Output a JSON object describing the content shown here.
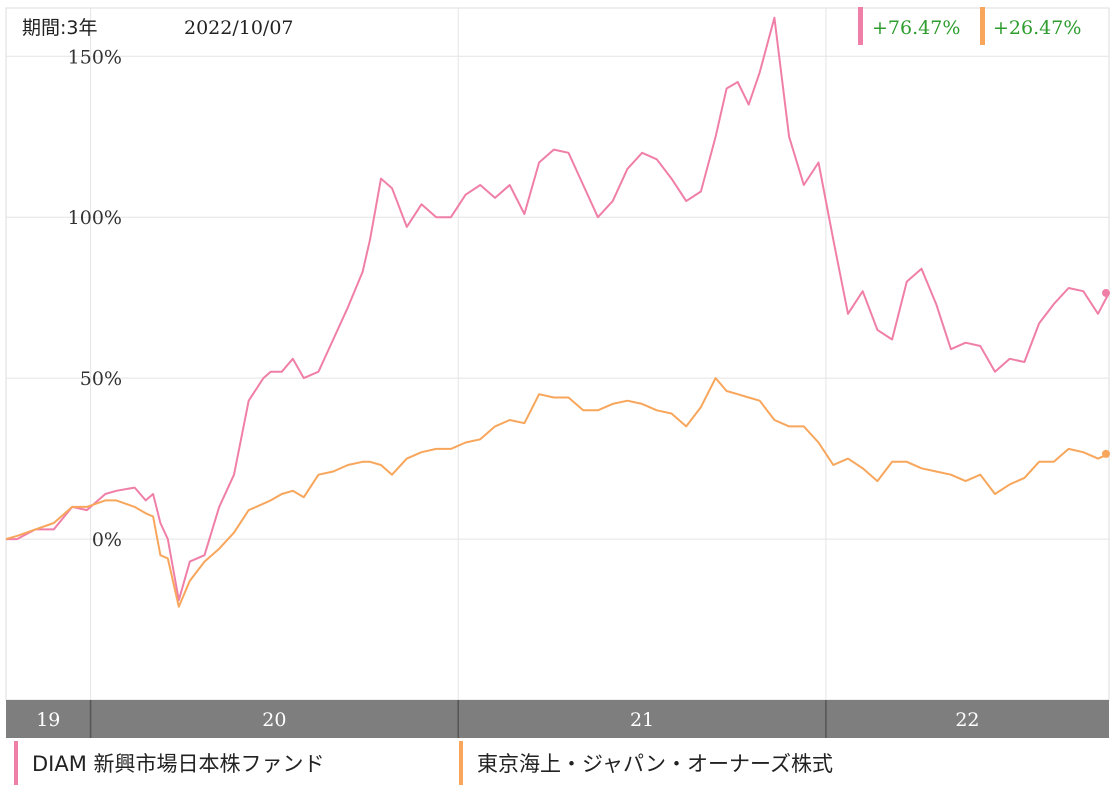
{
  "header": {
    "period_label": "期間:3年",
    "date": "2022/10/07"
  },
  "returns": [
    {
      "value": "+76.47%",
      "color": "#f07fa8"
    },
    {
      "value": "+26.47%",
      "color": "#f7a65c"
    }
  ],
  "colors": {
    "series1": "#f07fa8",
    "series2": "#f7a65c",
    "return_text": "#2e9c2e",
    "axis_bar": "#7e7e7e",
    "grid": "#e4e4e4"
  },
  "chart_data": {
    "type": "line",
    "title": "",
    "y_unit": "%",
    "ylim": [
      -50,
      165
    ],
    "y_ticks": [
      "150%",
      "100%",
      "50%",
      "0%"
    ],
    "y_tick_values": [
      150,
      100,
      50,
      0
    ],
    "x_range": [
      2019.77,
      2022.77
    ],
    "x_ticks": [
      {
        "label": "19",
        "at": 2019.77
      },
      {
        "label": "20",
        "at": 2020.0
      },
      {
        "label": "21",
        "at": 2021.0
      },
      {
        "label": "22",
        "at": 2022.0
      }
    ],
    "grid": true,
    "series": [
      {
        "name": "DIAM 新興市場日本株ファンド",
        "color": "#f07fa8",
        "end_label": "+76.47%",
        "x": [
          2019.77,
          2019.8,
          2019.85,
          2019.9,
          2019.95,
          2019.99,
          2020.04,
          2020.07,
          2020.12,
          2020.15,
          2020.17,
          2020.19,
          2020.21,
          2020.24,
          2020.27,
          2020.31,
          2020.35,
          2020.39,
          2020.43,
          2020.47,
          2020.49,
          2020.52,
          2020.55,
          2020.58,
          2020.62,
          2020.66,
          2020.7,
          2020.74,
          2020.76,
          2020.79,
          2020.82,
          2020.86,
          2020.9,
          2020.94,
          2020.98,
          2021.02,
          2021.06,
          2021.1,
          2021.14,
          2021.18,
          2021.22,
          2021.26,
          2021.3,
          2021.34,
          2021.38,
          2021.42,
          2021.46,
          2021.5,
          2021.54,
          2021.58,
          2021.62,
          2021.66,
          2021.7,
          2021.73,
          2021.76,
          2021.79,
          2021.82,
          2021.86,
          2021.9,
          2021.94,
          2021.98,
          2022.02,
          2022.06,
          2022.1,
          2022.14,
          2022.18,
          2022.22,
          2022.26,
          2022.3,
          2022.34,
          2022.38,
          2022.42,
          2022.46,
          2022.5,
          2022.54,
          2022.58,
          2022.62,
          2022.66,
          2022.7,
          2022.74,
          2022.77
        ],
        "y": [
          0,
          0,
          3,
          3,
          10,
          9,
          14,
          15,
          16,
          12,
          14,
          5,
          0,
          -19,
          -7,
          -5,
          10,
          20,
          43,
          50,
          52,
          52,
          56,
          50,
          52,
          62,
          72,
          83,
          93,
          112,
          109,
          97,
          104,
          100,
          100,
          107,
          110,
          106,
          110,
          101,
          117,
          121,
          120,
          110,
          100,
          105,
          115,
          120,
          118,
          112,
          105,
          108,
          125,
          140,
          142,
          135,
          145,
          162,
          125,
          110,
          117,
          93,
          70,
          77,
          65,
          62,
          80,
          84,
          73,
          59,
          61,
          60,
          52,
          56,
          55,
          67,
          73,
          78,
          77,
          70,
          76.47
        ]
      },
      {
        "name": "東京海上・ジャパン・オーナーズ株式",
        "color": "#f7a65c",
        "end_label": "+26.47%",
        "x": [
          2019.77,
          2019.8,
          2019.85,
          2019.9,
          2019.95,
          2019.99,
          2020.04,
          2020.07,
          2020.12,
          2020.15,
          2020.17,
          2020.19,
          2020.21,
          2020.24,
          2020.27,
          2020.31,
          2020.35,
          2020.39,
          2020.43,
          2020.47,
          2020.49,
          2020.52,
          2020.55,
          2020.58,
          2020.62,
          2020.66,
          2020.7,
          2020.74,
          2020.76,
          2020.79,
          2020.82,
          2020.86,
          2020.9,
          2020.94,
          2020.98,
          2021.02,
          2021.06,
          2021.1,
          2021.14,
          2021.18,
          2021.22,
          2021.26,
          2021.3,
          2021.34,
          2021.38,
          2021.42,
          2021.46,
          2021.5,
          2021.54,
          2021.58,
          2021.62,
          2021.66,
          2021.7,
          2021.73,
          2021.76,
          2021.79,
          2021.82,
          2021.86,
          2021.9,
          2021.94,
          2021.98,
          2022.02,
          2022.06,
          2022.1,
          2022.14,
          2022.18,
          2022.22,
          2022.26,
          2022.3,
          2022.34,
          2022.38,
          2022.42,
          2022.46,
          2022.5,
          2022.54,
          2022.58,
          2022.62,
          2022.66,
          2022.7,
          2022.74,
          2022.77
        ],
        "y": [
          0,
          1,
          3,
          5,
          10,
          10,
          12,
          12,
          10,
          8,
          7,
          -5,
          -6,
          -21,
          -13,
          -7,
          -3,
          2,
          9,
          11,
          12,
          14,
          15,
          13,
          20,
          21,
          23,
          24,
          24,
          23,
          20,
          25,
          27,
          28,
          28,
          30,
          31,
          35,
          37,
          36,
          45,
          44,
          44,
          40,
          40,
          42,
          43,
          42,
          40,
          39,
          35,
          41,
          50,
          46,
          45,
          44,
          43,
          37,
          35,
          35,
          30,
          23,
          25,
          22,
          18,
          24,
          24,
          22,
          21,
          20,
          18,
          20,
          14,
          17,
          19,
          24,
          24,
          28,
          27,
          25,
          26.47
        ]
      }
    ]
  },
  "legend": [
    {
      "label": "DIAM 新興市場日本株ファンド",
      "color": "#f07fa8"
    },
    {
      "label": "東京海上・ジャパン・オーナーズ株式",
      "color": "#f7a65c"
    }
  ]
}
